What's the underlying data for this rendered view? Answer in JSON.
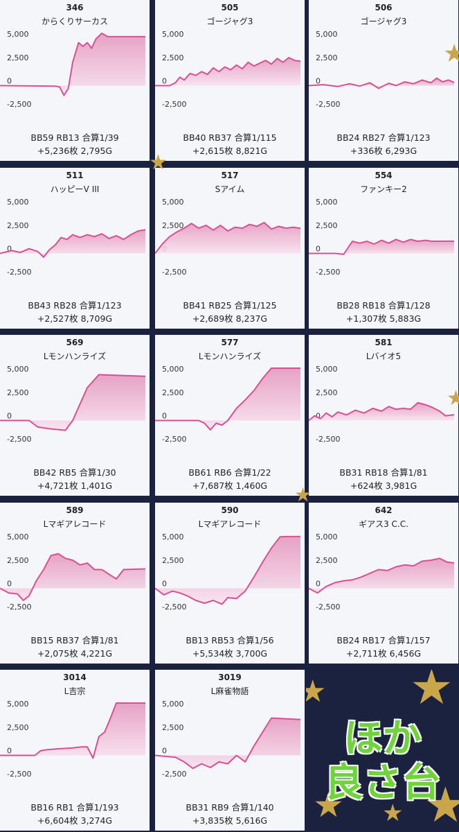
{
  "chart_data": [
    {
      "type": "area",
      "title": "346",
      "subtitle": "からくりサーカス",
      "stats1": "BB59 RB13 合算1/39",
      "stats2": "+5,236枚 2,795G",
      "ylim": [
        -3600,
        5600
      ],
      "yticks": [
        "5,000",
        "2,500",
        "0",
        "-2,500"
      ],
      "x": [
        0,
        0.38,
        0.41,
        0.44,
        0.47,
        0.5,
        0.54,
        0.57,
        0.6,
        0.63,
        0.66,
        0.7,
        0.74,
        1.0
      ],
      "y": [
        0,
        -50,
        -150,
        -1050,
        -300,
        2500,
        4600,
        4200,
        4600,
        4000,
        5000,
        5600,
        5250,
        5236
      ]
    },
    {
      "type": "area",
      "title": "505",
      "subtitle": "ゴージャグ3",
      "stats1": "BB40 RB37 合算1/115",
      "stats2": "+2,615枚 8,821G",
      "ylim": [
        -3600,
        5600
      ],
      "yticks": [
        "5,000",
        "2,500",
        "0",
        "-2,500"
      ],
      "x": [
        0,
        0.1,
        0.14,
        0.17,
        0.2,
        0.24,
        0.28,
        0.32,
        0.36,
        0.4,
        0.44,
        0.48,
        0.52,
        0.56,
        0.6,
        0.64,
        0.68,
        0.72,
        0.76,
        0.8,
        0.84,
        0.88,
        0.92,
        0.96,
        1.0
      ],
      "y": [
        0,
        0,
        300,
        900,
        600,
        1300,
        1100,
        1500,
        1200,
        1900,
        1500,
        2000,
        1700,
        2200,
        1800,
        2500,
        2100,
        2400,
        2700,
        2300,
        2900,
        2500,
        3000,
        2700,
        2615
      ]
    },
    {
      "type": "area",
      "title": "506",
      "subtitle": "ゴージャグ3",
      "stats1": "BB24 RB27 合算1/123",
      "stats2": "+336枚 6,293G",
      "ylim": [
        -3600,
        5600
      ],
      "yticks": [
        "5,000",
        "2,500",
        "0",
        "-2,500"
      ],
      "x": [
        0,
        0.1,
        0.2,
        0.28,
        0.35,
        0.42,
        0.48,
        0.55,
        0.6,
        0.66,
        0.72,
        0.78,
        0.84,
        0.88,
        0.92,
        0.96,
        1.0
      ],
      "y": [
        0,
        100,
        -100,
        200,
        -50,
        300,
        -300,
        250,
        0,
        400,
        200,
        600,
        300,
        800,
        400,
        600,
        336
      ]
    },
    {
      "type": "area",
      "title": "511",
      "subtitle": "ハッピーV III",
      "stats1": "BB43 RB28 合算1/123",
      "stats2": "+2,527枚 8,709G",
      "ylim": [
        -3600,
        5600
      ],
      "yticks": [
        "5,000",
        "2,500",
        "0",
        "-2,500"
      ],
      "x": [
        0,
        0.08,
        0.14,
        0.2,
        0.26,
        0.3,
        0.34,
        0.38,
        0.42,
        0.46,
        0.5,
        0.55,
        0.6,
        0.65,
        0.7,
        0.75,
        0.8,
        0.85,
        0.9,
        0.95,
        1.0
      ],
      "y": [
        0,
        300,
        100,
        500,
        200,
        -400,
        400,
        900,
        1700,
        1500,
        2000,
        1700,
        2000,
        1800,
        2100,
        1600,
        1900,
        1500,
        2000,
        2400,
        2527
      ]
    },
    {
      "type": "area",
      "title": "517",
      "subtitle": "Sアイム",
      "stats1": "BB41 RB25 合算1/125",
      "stats2": "+2,689枚 8,237G",
      "ylim": [
        -3600,
        5600
      ],
      "yticks": [
        "5,000",
        "2,500",
        "0",
        "-2,500"
      ],
      "x": [
        0,
        0.05,
        0.1,
        0.15,
        0.2,
        0.25,
        0.3,
        0.35,
        0.4,
        0.45,
        0.5,
        0.55,
        0.6,
        0.65,
        0.7,
        0.75,
        0.8,
        0.85,
        0.9,
        0.95,
        1.0
      ],
      "y": [
        0,
        1000,
        1800,
        2300,
        2700,
        3200,
        2700,
        3000,
        2500,
        3000,
        2400,
        2800,
        2700,
        3100,
        2900,
        3300,
        2600,
        2900,
        2700,
        2800,
        2689
      ]
    },
    {
      "type": "area",
      "title": "554",
      "subtitle": "ファンキー2",
      "stats1": "BB28 RB18 合算1/128",
      "stats2": "+1,307枚 5,883G",
      "ylim": [
        -3600,
        5600
      ],
      "yticks": [
        "5,000",
        "2,500",
        "0",
        "-2,500"
      ],
      "x": [
        0,
        0.18,
        0.24,
        0.3,
        0.35,
        0.4,
        0.45,
        0.5,
        0.55,
        0.6,
        0.65,
        0.7,
        0.75,
        0.8,
        0.85,
        0.9,
        1.0
      ],
      "y": [
        0,
        0,
        -100,
        1300,
        1100,
        1300,
        1000,
        1400,
        1100,
        1500,
        1200,
        1500,
        1300,
        1400,
        1300,
        1307,
        1307
      ]
    },
    {
      "type": "area",
      "title": "569",
      "subtitle": "Lモンハンライズ",
      "stats1": "BB42 RB5 合算1/30",
      "stats2": "+4,721枚 1,401G",
      "ylim": [
        -3600,
        5600
      ],
      "yticks": [
        "5,000",
        "2,500",
        "0",
        "-2,500"
      ],
      "x": [
        0,
        0.2,
        0.26,
        0.35,
        0.45,
        0.5,
        0.6,
        0.68,
        1.0
      ],
      "y": [
        0,
        0,
        -700,
        -900,
        -1050,
        0,
        3500,
        4900,
        4721
      ]
    },
    {
      "type": "area",
      "title": "577",
      "subtitle": "Lモンハンライズ",
      "stats1": "BB61 RB6 合算1/22",
      "stats2": "+7,687枚 1,460G",
      "ylim": [
        -3600,
        5600
      ],
      "yticks": [
        "5,000",
        "2,500",
        "0",
        "-2,500"
      ],
      "x": [
        0,
        0.3,
        0.34,
        0.38,
        0.42,
        0.46,
        0.5,
        0.56,
        0.62,
        0.68,
        0.74,
        0.8,
        1.0
      ],
      "y": [
        0,
        0,
        -300,
        -1000,
        -300,
        -500,
        0,
        1300,
        2200,
        3200,
        4500,
        5600,
        5600
      ]
    },
    {
      "type": "area",
      "title": "581",
      "subtitle": "Lバイオ5",
      "stats1": "BB31 RB18 合算1/81",
      "stats2": "+624枚 3,981G",
      "ylim": [
        -3600,
        5600
      ],
      "yticks": [
        "5,000",
        "2,500",
        "0",
        "-2,500"
      ],
      "x": [
        0,
        0.04,
        0.08,
        0.12,
        0.16,
        0.2,
        0.26,
        0.32,
        0.38,
        0.44,
        0.5,
        0.55,
        0.6,
        0.65,
        0.7,
        0.75,
        0.8,
        0.85,
        0.9,
        0.94,
        1.0
      ],
      "y": [
        0,
        500,
        200,
        800,
        400,
        900,
        600,
        1100,
        800,
        1300,
        1000,
        1500,
        1200,
        1300,
        1200,
        1900,
        1700,
        1400,
        1000,
        500,
        624
      ]
    },
    {
      "type": "area",
      "title": "589",
      "subtitle": "Lマギアレコード",
      "stats1": "BB15 RB37 合算1/81",
      "stats2": "+2,075枚 4,221G",
      "ylim": [
        -3600,
        5600
      ],
      "yticks": [
        "5,000",
        "2,500",
        "0",
        "-2,500"
      ],
      "x": [
        0,
        0.06,
        0.12,
        0.16,
        0.2,
        0.25,
        0.3,
        0.35,
        0.4,
        0.45,
        0.5,
        0.55,
        0.6,
        0.65,
        0.7,
        0.75,
        0.8,
        0.85,
        1.0
      ],
      "y": [
        0,
        -500,
        -600,
        -1300,
        -800,
        800,
        2000,
        3500,
        3700,
        3200,
        3000,
        2500,
        2700,
        2000,
        2000,
        1500,
        1000,
        2000,
        2075
      ]
    },
    {
      "type": "area",
      "title": "590",
      "subtitle": "Lマギアレコード",
      "stats1": "BB13 RB53 合算1/56",
      "stats2": "+5,534枚 3,700G",
      "ylim": [
        -3600,
        5600
      ],
      "yticks": [
        "5,000",
        "2,500",
        "0",
        "-2,500"
      ],
      "x": [
        0,
        0.06,
        0.12,
        0.17,
        0.22,
        0.28,
        0.34,
        0.4,
        0.46,
        0.5,
        0.56,
        0.62,
        0.68,
        0.74,
        0.8,
        0.86,
        0.9,
        1.0
      ],
      "y": [
        0,
        -700,
        -300,
        -500,
        -800,
        -1300,
        -1600,
        -1300,
        -1700,
        -1000,
        -1100,
        -300,
        1200,
        2800,
        4300,
        5500,
        5534,
        5534
      ]
    },
    {
      "type": "area",
      "title": "642",
      "subtitle": "ギアス3 C.C.",
      "stats1": "BB24 RB17 合算1/157",
      "stats2": "+2,711枚 6,456G",
      "ylim": [
        -3600,
        5600
      ],
      "yticks": [
        "5,000",
        "2,500",
        "0",
        "-2,500"
      ],
      "x": [
        0,
        0.06,
        0.12,
        0.18,
        0.24,
        0.3,
        0.36,
        0.42,
        0.48,
        0.54,
        0.6,
        0.66,
        0.72,
        0.78,
        0.84,
        0.9,
        0.95,
        1.0
      ],
      "y": [
        0,
        -500,
        200,
        600,
        800,
        900,
        1200,
        1600,
        2000,
        1900,
        2300,
        2500,
        2400,
        2900,
        3000,
        3200,
        2800,
        2711
      ]
    },
    {
      "type": "area",
      "title": "3014",
      "subtitle": "L吉宗",
      "stats1": "BB16 RB1 合算1/193",
      "stats2": "+6,604枚 3,274G",
      "ylim": [
        -3600,
        5600
      ],
      "yticks": [
        "5,000",
        "2,500",
        "0",
        "-2,500"
      ],
      "x": [
        0,
        0.24,
        0.28,
        0.32,
        0.4,
        0.5,
        0.56,
        0.6,
        0.64,
        0.68,
        0.72,
        0.76,
        0.8,
        1.0
      ],
      "y": [
        0,
        0,
        500,
        600,
        700,
        800,
        900,
        900,
        -300,
        2000,
        2500,
        4000,
        5600,
        5600
      ]
    },
    {
      "type": "area",
      "title": "3019",
      "subtitle": "L麻雀物語",
      "stats1": "BB31 RB9 合算1/140",
      "stats2": "+3,835枚 5,616G",
      "ylim": [
        -3600,
        5600
      ],
      "yticks": [
        "5,000",
        "2,500",
        "0",
        "-2,500"
      ],
      "x": [
        0,
        0.14,
        0.2,
        0.26,
        0.32,
        0.38,
        0.44,
        0.5,
        0.56,
        0.62,
        0.68,
        0.74,
        0.8,
        1.0
      ],
      "y": [
        0,
        -200,
        -700,
        -1400,
        -900,
        -1300,
        -700,
        -900,
        0,
        -700,
        1000,
        2500,
        4000,
        3835
      ]
    }
  ],
  "promo": {
    "line1": "ほか",
    "line2": "良さ台"
  },
  "colors": {
    "line": "#d94f93",
    "fill_top": "#e493bc",
    "fill_bottom": "#f8e1ee",
    "card": "#f4f6fa",
    "bg": "#1b2240",
    "promo_text": "#6fd33a"
  }
}
